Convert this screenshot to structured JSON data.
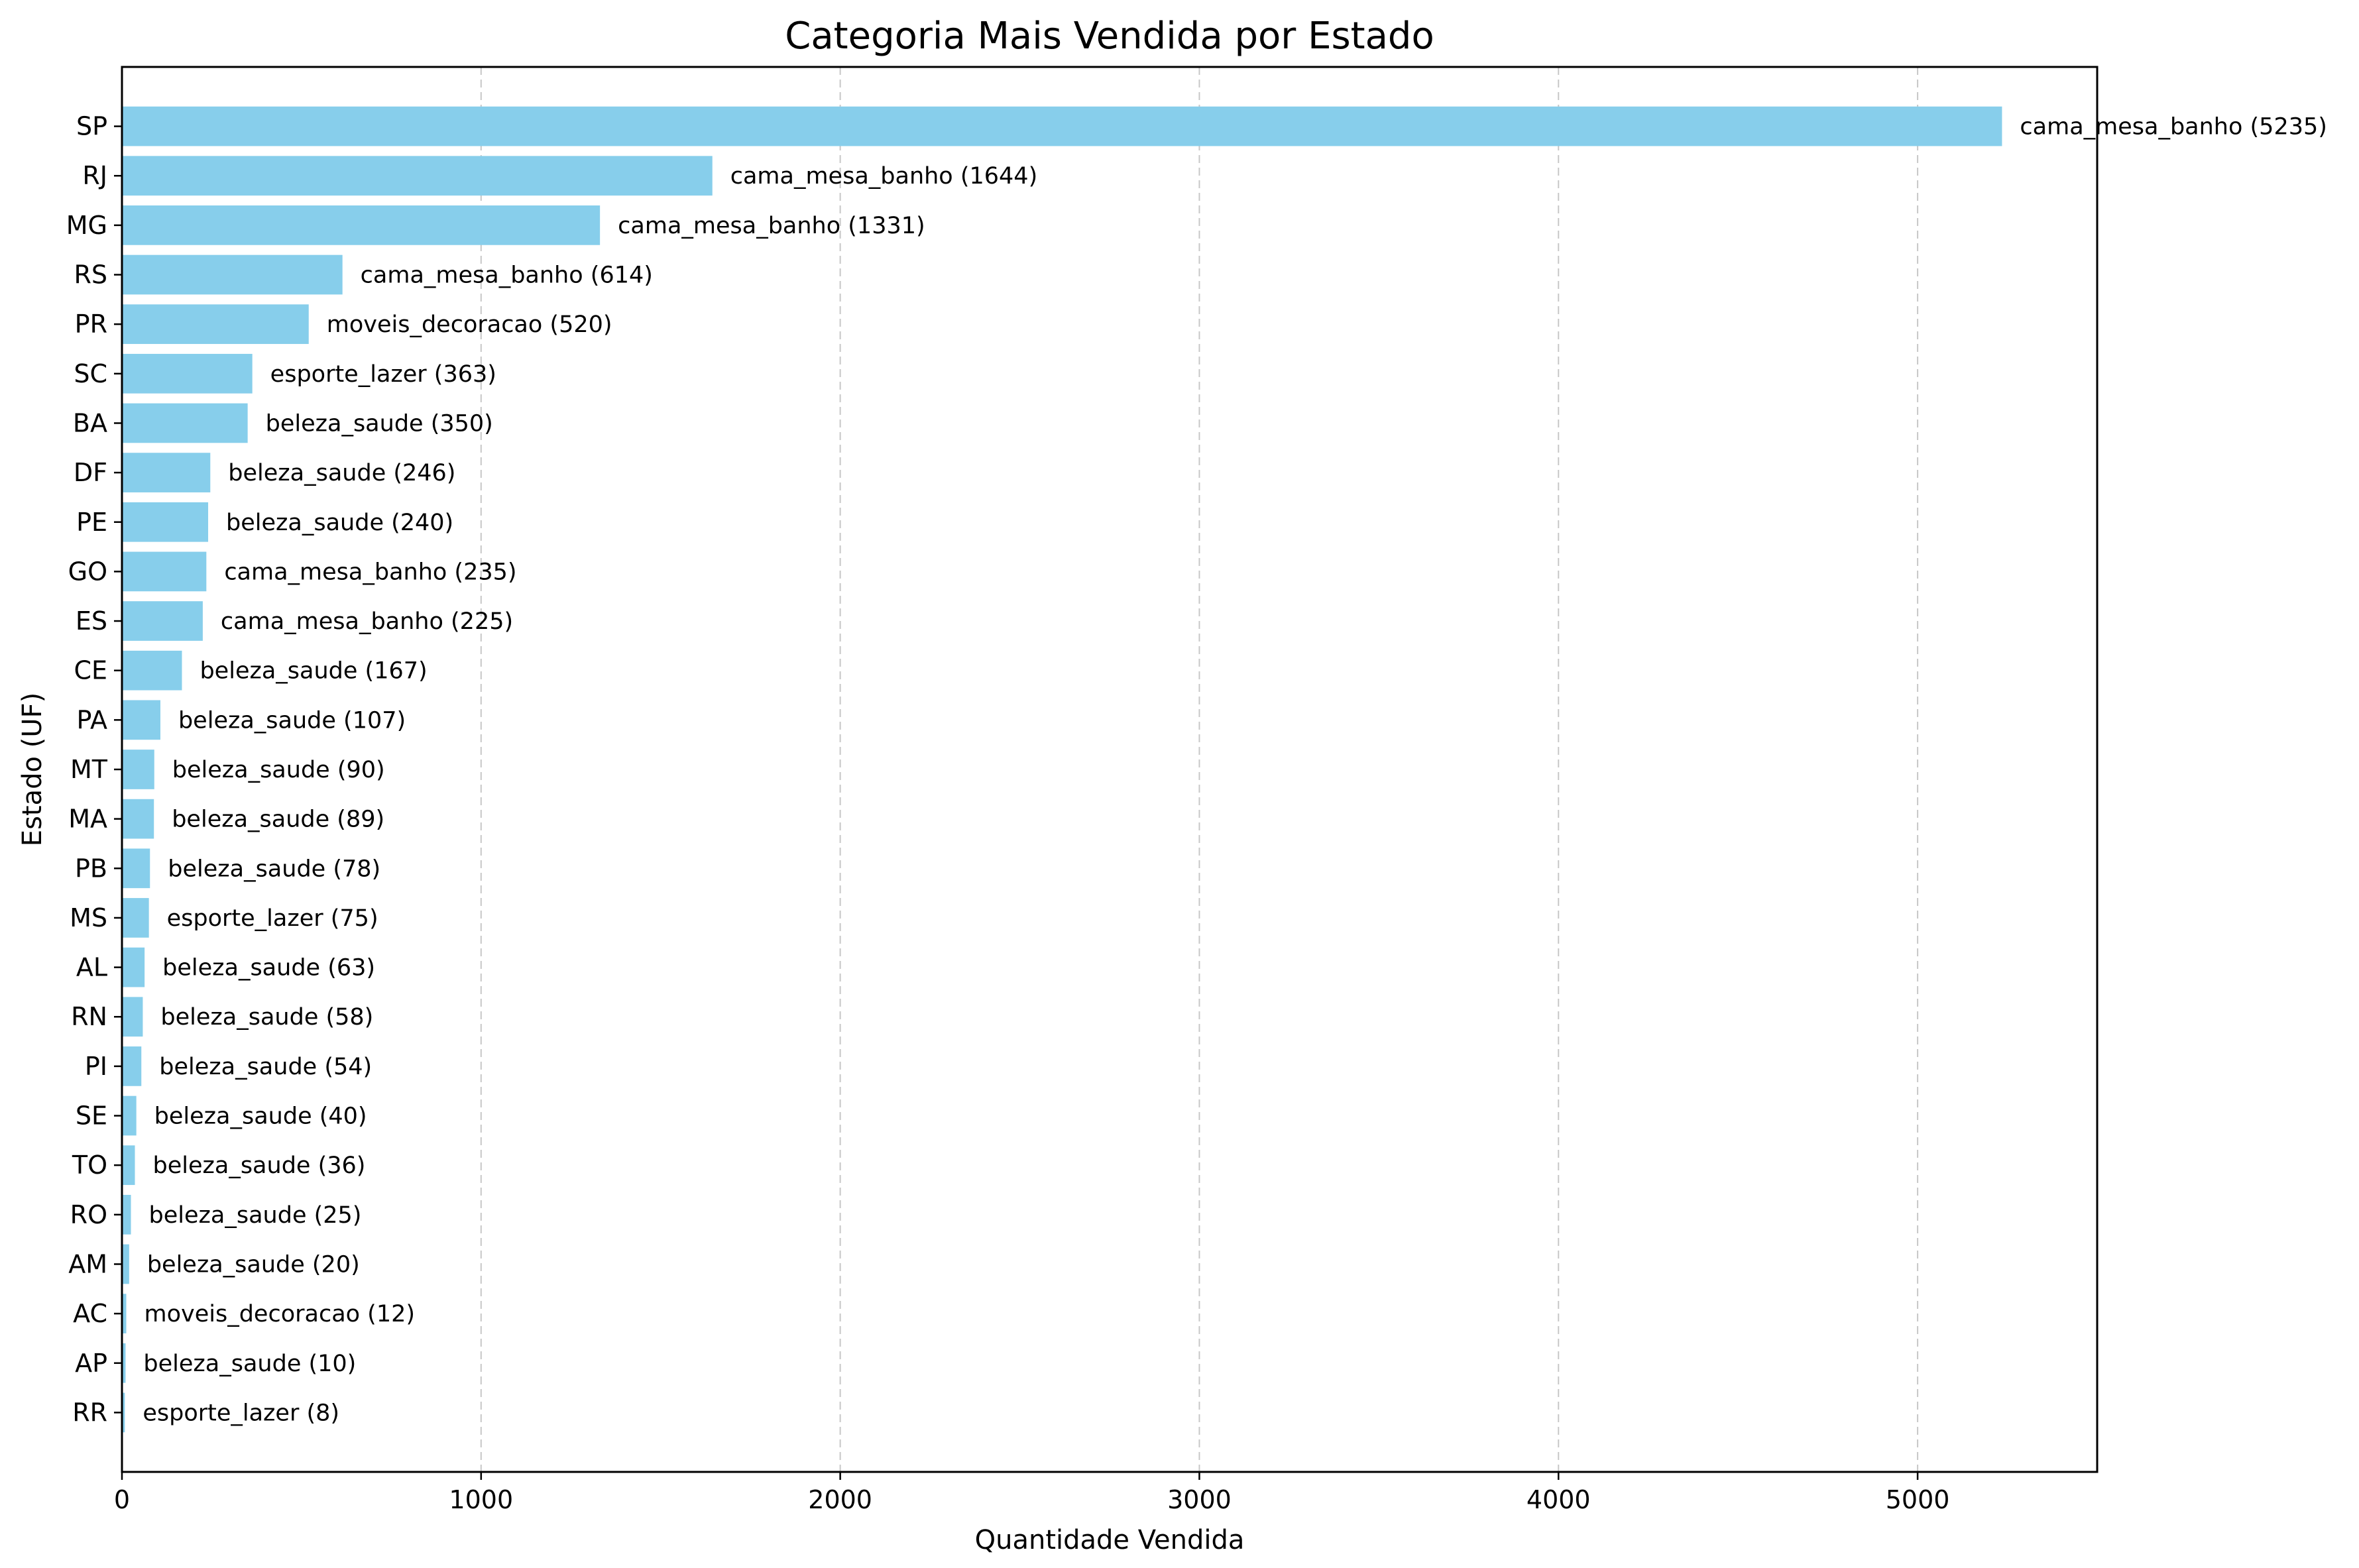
{
  "chart_data": {
    "type": "bar",
    "orientation": "horizontal",
    "title": "Categoria Mais Vendida por Estado",
    "xlabel": "Quantidade Vendida",
    "ylabel": "Estado (UF)",
    "xlim": [
      0,
      5500
    ],
    "xticks": [
      0,
      1000,
      2000,
      3000,
      4000,
      5000
    ],
    "grid": "x-dashed",
    "bar_color": "#87ceeb",
    "categories": [
      "SP",
      "RJ",
      "MG",
      "RS",
      "PR",
      "SC",
      "BA",
      "DF",
      "PE",
      "GO",
      "ES",
      "CE",
      "PA",
      "MT",
      "MA",
      "PB",
      "MS",
      "AL",
      "RN",
      "PI",
      "SE",
      "TO",
      "RO",
      "AM",
      "AC",
      "AP",
      "RR"
    ],
    "values": [
      5235,
      1644,
      1331,
      614,
      520,
      363,
      350,
      246,
      240,
      235,
      225,
      167,
      107,
      90,
      89,
      78,
      75,
      63,
      58,
      54,
      40,
      36,
      25,
      20,
      12,
      10,
      8
    ],
    "bar_labels": [
      "cama_mesa_banho (5235)",
      "cama_mesa_banho (1644)",
      "cama_mesa_banho (1331)",
      "cama_mesa_banho (614)",
      "moveis_decoracao (520)",
      "esporte_lazer (363)",
      "beleza_saude (350)",
      "beleza_saude (246)",
      "beleza_saude (240)",
      "cama_mesa_banho (235)",
      "cama_mesa_banho (225)",
      "beleza_saude (167)",
      "beleza_saude (107)",
      "beleza_saude (90)",
      "beleza_saude (89)",
      "beleza_saude (78)",
      "esporte_lazer (75)",
      "beleza_saude (63)",
      "beleza_saude (58)",
      "beleza_saude (54)",
      "beleza_saude (40)",
      "beleza_saude (36)",
      "beleza_saude (25)",
      "beleza_saude (20)",
      "moveis_decoracao (12)",
      "beleza_saude (10)",
      "esporte_lazer (8)"
    ]
  }
}
